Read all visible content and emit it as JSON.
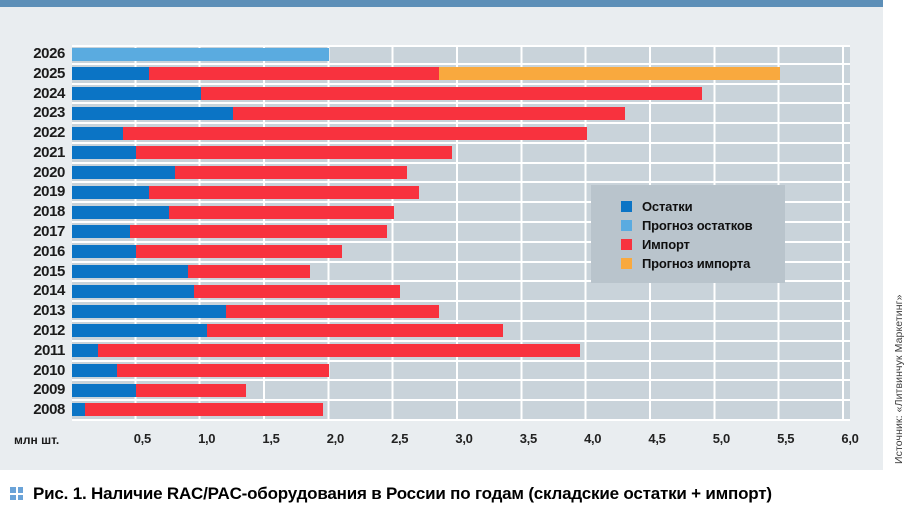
{
  "page": {
    "caption_label": "Рис. 1.",
    "caption_text": "Наличие RAC/PAC-оборудования в России по годам (складские остатки + импорт)",
    "source": "Источник: «Литвинчук Маркетинг»"
  },
  "palette": {
    "card_bg": "#e9edf0",
    "plot_cell_bg": "#c9d3da",
    "grid_line": "#ffffff",
    "legend_bg": "#b9c4cc",
    "header_strip": "#5d8fb8",
    "caption_icon_blue": "#6aa3d8"
  },
  "chart_data": {
    "type": "bar",
    "orientation": "horizontal",
    "stacked": true,
    "title": "",
    "unit_label": "млн шт.",
    "xlim": [
      0,
      6.0
    ],
    "grid": true,
    "gridline_step": 0.5,
    "legend_position": "middle-right",
    "categories": [
      "2026",
      "2025",
      "2024",
      "2023",
      "2022",
      "2021",
      "2020",
      "2019",
      "2018",
      "2017",
      "2016",
      "2015",
      "2014",
      "2013",
      "2012",
      "2011",
      "2010",
      "2009",
      "2008"
    ],
    "stack_order": [
      "stocks",
      "forecast_stocks",
      "import",
      "forecast_import"
    ],
    "series": [
      {
        "name": "Остатки",
        "key": "stocks",
        "color": "#0b74c5",
        "values": [
          0,
          0.6,
          1.0,
          1.25,
          0.4,
          0.5,
          0.8,
          0.6,
          0.75,
          0.45,
          0.5,
          0.9,
          0.95,
          1.2,
          1.05,
          0.2,
          0.35,
          0.5,
          0.1
        ]
      },
      {
        "name": "Прогноз остатков",
        "key": "forecast_stocks",
        "color": "#5aabe0",
        "values": [
          2.0,
          0,
          0,
          0,
          0,
          0,
          0,
          0,
          0,
          0,
          0,
          0,
          0,
          0,
          0,
          0,
          0,
          0,
          0
        ]
      },
      {
        "name": "Импорт",
        "key": "import",
        "color": "#f8323e",
        "values": [
          0,
          2.25,
          3.9,
          3.05,
          3.6,
          2.45,
          1.8,
          2.1,
          1.75,
          2.0,
          1.6,
          0.95,
          1.6,
          1.65,
          2.3,
          3.75,
          1.65,
          0.85,
          1.85
        ]
      },
      {
        "name": "Прогноз импорта",
        "key": "forecast_import",
        "color": "#f9a93e",
        "values": [
          0,
          2.65,
          0,
          0,
          0,
          0,
          0,
          0,
          0,
          0,
          0,
          0,
          0,
          0,
          0,
          0,
          0,
          0,
          0
        ]
      }
    ],
    "x_ticks": [
      "0,5",
      "1,0",
      "1,5",
      "2,0",
      "2,5",
      "3,0",
      "3,5",
      "4,0",
      "4,5",
      "5,0",
      "5,5",
      "6,0"
    ]
  }
}
